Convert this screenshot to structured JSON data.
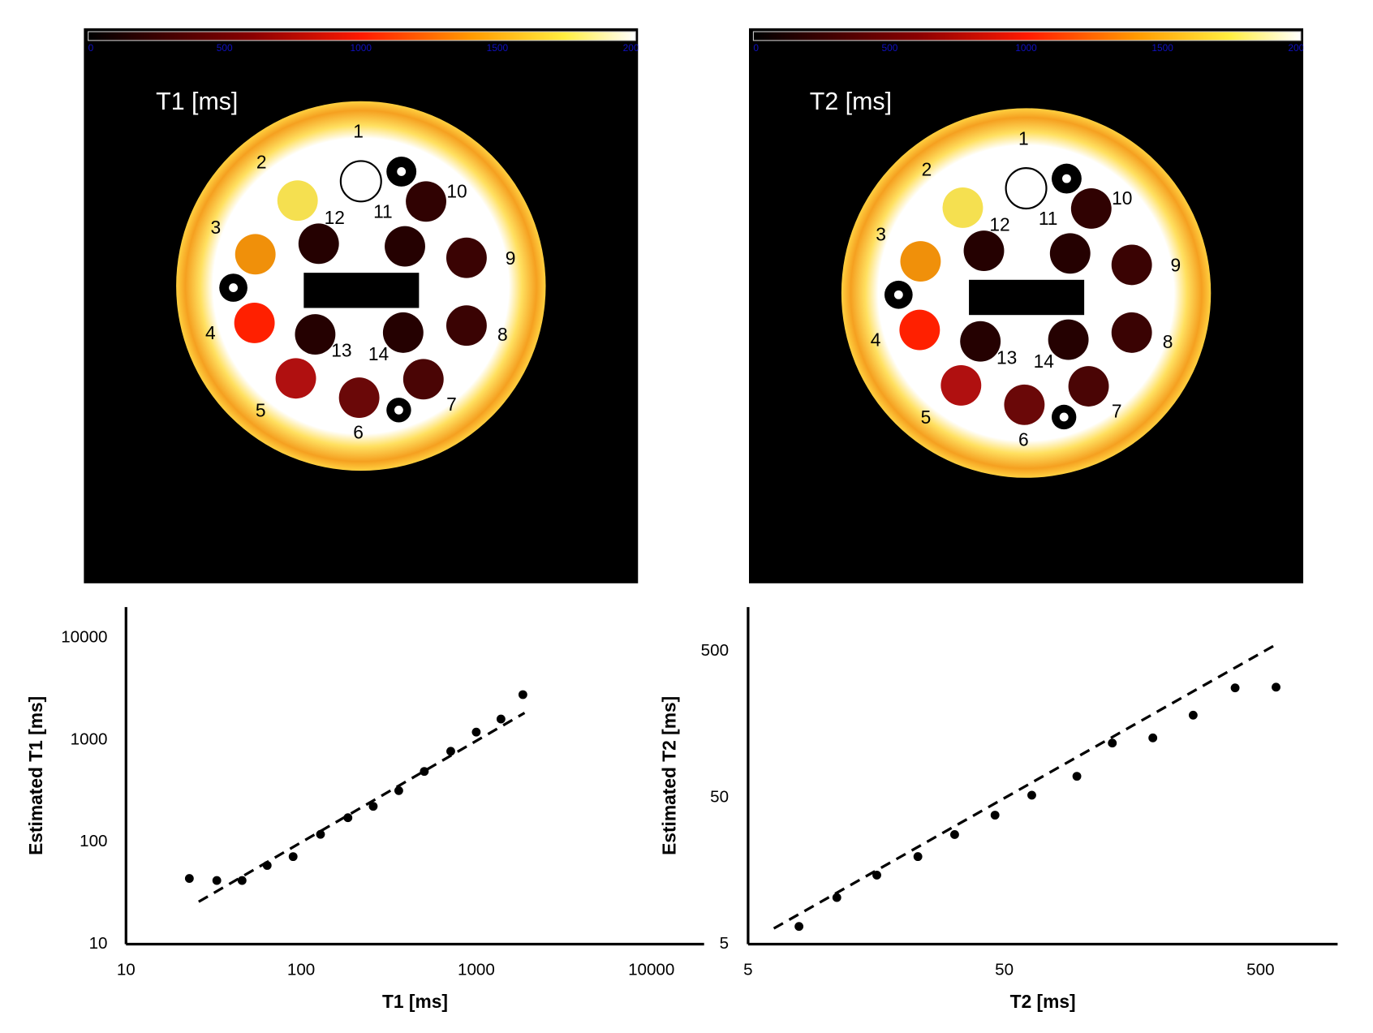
{
  "panels": [
    {
      "title": "T1 [ms]",
      "colorbar_ticks": [
        "0",
        "500",
        "1000",
        "1500",
        "2000"
      ],
      "labels": [
        "1",
        "2",
        "3",
        "4",
        "5",
        "6",
        "7",
        "8",
        "9",
        "10",
        "11",
        "12",
        "13",
        "14"
      ]
    },
    {
      "title": "T2 [ms]",
      "colorbar_ticks": [
        "0",
        "500",
        "1000",
        "1500",
        "2000"
      ],
      "labels": [
        "1",
        "2",
        "3",
        "4",
        "5",
        "6",
        "7",
        "8",
        "9",
        "10",
        "11",
        "12",
        "13",
        "14"
      ]
    }
  ],
  "chart_data": [
    {
      "type": "scatter",
      "x_label": "T1 [ms]",
      "y_label": "Estimated T1 [ms]",
      "log_x": true,
      "log_y": true,
      "xlim": [
        10,
        20000
      ],
      "ylim": [
        10,
        20000
      ],
      "xticks": [
        10,
        100,
        1000,
        10000
      ],
      "yticks": [
        10,
        100,
        1000,
        10000
      ],
      "series": [
        {
          "color": "#000000",
          "x": [
            23,
            33,
            46,
            64,
            90,
            129,
            185,
            258,
            361,
            505,
            715,
            1000,
            1384,
            1846
          ],
          "values": [
            44,
            42,
            42,
            59,
            72,
            119,
            173,
            224,
            319,
            492,
            775,
            1194,
            1603,
            2780
          ]
        }
      ],
      "fit_line": {
        "color": "#000000",
        "x": [
          26,
          1888
        ],
        "values": [
          26,
          1841
        ]
      }
    },
    {
      "type": "scatter",
      "x_label": "T2 [ms]",
      "y_label": "Estimated T2 [ms]",
      "log_x": true,
      "log_y": true,
      "xlim": [
        5,
        1000
      ],
      "ylim": [
        5,
        1000
      ],
      "xticks": [
        5,
        50,
        500
      ],
      "yticks": [
        5,
        50,
        500
      ],
      "series": [
        {
          "color": "#000000",
          "x": [
            7.9,
            11.1,
            15.9,
            23,
            32,
            46,
            64,
            96,
            132,
            190,
            273,
            398,
            575
          ],
          "values": [
            6.6,
            10.4,
            14.8,
            19.8,
            28,
            38,
            52,
            70,
            118,
            128,
            183,
            281,
            284
          ]
        }
      ],
      "fit_line": {
        "color": "#000000",
        "x": [
          6.3,
          585
        ],
        "values": [
          6.4,
          565
        ]
      }
    }
  ]
}
